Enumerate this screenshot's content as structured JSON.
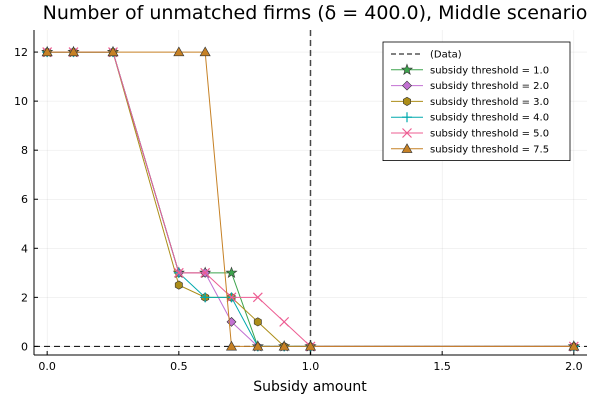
{
  "chart_data": {
    "type": "line",
    "title": "Number of unmatched firms (δ = 400.0), Middle scenario",
    "xlabel": "Subsidy amount",
    "ylabel": "",
    "xlim": [
      -0.05,
      2.05
    ],
    "ylim": [
      -0.35,
      12.9
    ],
    "x_ticks": [
      0.0,
      0.5,
      1.0,
      1.5,
      2.0
    ],
    "x_tick_labels": [
      "0.0",
      "0.5",
      "1.0",
      "1.5",
      "2.0"
    ],
    "y_ticks": [
      0,
      2,
      4,
      6,
      8,
      10,
      12
    ],
    "y_tick_labels": [
      "0",
      "2",
      "4",
      "6",
      "8",
      "10",
      "12"
    ],
    "grid": true,
    "legend_position": "top-right",
    "reference_lines": [
      {
        "name": "(Data)",
        "orientation": "horizontal",
        "value": 0,
        "color": "#000000",
        "dash": "dashed"
      },
      {
        "name": "",
        "orientation": "vertical",
        "value": 1.0,
        "color": "#000000",
        "dash": "dashed"
      }
    ],
    "series": [
      {
        "name": "subsidy threshold = 1.0",
        "color": "#3da44d",
        "marker": "star",
        "x": [
          0.0,
          0.1,
          0.25,
          0.5,
          0.6,
          0.7,
          0.8,
          0.9,
          1.0,
          2.0
        ],
        "y": [
          12,
          12,
          12,
          3,
          3,
          3,
          0,
          0,
          0,
          0
        ]
      },
      {
        "name": "subsidy threshold = 2.0",
        "color": "#c271d2",
        "marker": "diamond",
        "x": [
          0.0,
          0.1,
          0.25,
          0.5,
          0.6,
          0.7,
          0.8,
          0.9,
          1.0,
          2.0
        ],
        "y": [
          12,
          12,
          12,
          3,
          3,
          1,
          0,
          0,
          0,
          0
        ]
      },
      {
        "name": "subsidy threshold = 3.0",
        "color": "#ac8d18",
        "marker": "hexagon",
        "x": [
          0.0,
          0.1,
          0.25,
          0.5,
          0.6,
          0.7,
          0.8,
          0.9,
          1.0,
          2.0
        ],
        "y": [
          12,
          12,
          12,
          2.5,
          2,
          2,
          1,
          0,
          0,
          0
        ]
      },
      {
        "name": "subsidy threshold = 4.0",
        "color": "#00a9ad",
        "marker": "cross",
        "x": [
          0.0,
          0.1,
          0.25,
          0.5,
          0.6,
          0.7,
          0.8,
          0.9,
          1.0,
          2.0
        ],
        "y": [
          12,
          12,
          12,
          3,
          2,
          2,
          0,
          0,
          0,
          0
        ]
      },
      {
        "name": "subsidy threshold = 5.0",
        "color": "#ed5d92",
        "marker": "x",
        "x": [
          0.0,
          0.1,
          0.25,
          0.5,
          0.6,
          0.7,
          0.8,
          0.9,
          1.0,
          2.0
        ],
        "y": [
          12,
          12,
          12,
          3,
          3,
          2,
          2,
          1,
          0,
          0
        ]
      },
      {
        "name": "subsidy threshold = 7.5",
        "color": "#c68125",
        "marker": "triangle",
        "x": [
          0.0,
          0.1,
          0.25,
          0.5,
          0.6,
          0.7,
          0.8,
          0.9,
          1.0,
          2.0
        ],
        "y": [
          12,
          12,
          12,
          12,
          12,
          0,
          0,
          0,
          0,
          0
        ]
      }
    ]
  }
}
